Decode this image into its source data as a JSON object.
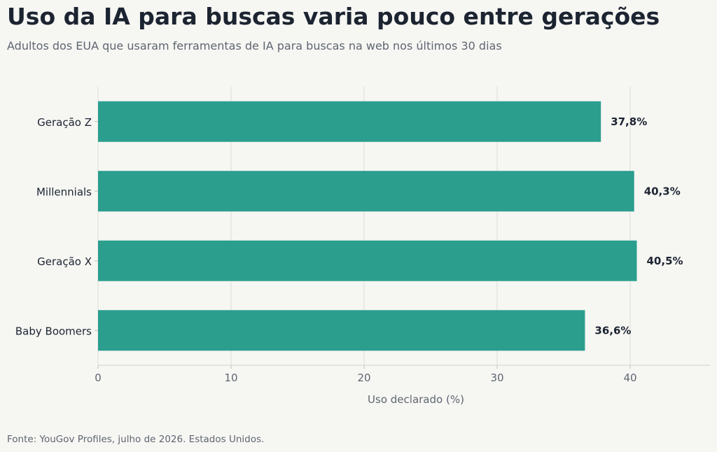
{
  "title": "Uso da IA para buscas varia pouco entre gerações",
  "subtitle": "Adultos dos EUA que usaram ferramentas de IA para buscas na web nos últimos 30 dias",
  "source": "Fonte: YouGov Profiles, julho de 2026. Estados Unidos.",
  "chart_data": {
    "type": "bar",
    "orientation": "horizontal",
    "categories": [
      "Geração Z",
      "Millennials",
      "Geração X",
      "Baby Boomers"
    ],
    "values": [
      37.8,
      40.3,
      40.5,
      36.6
    ],
    "value_labels": [
      "37,8%",
      "40,3%",
      "40,5%",
      "36,6%"
    ],
    "xlabel": "Uso declarado (%)",
    "ylabel": "",
    "xlim": [
      0,
      46
    ],
    "xticks": [
      0,
      10,
      20,
      30,
      40
    ],
    "grid": true,
    "bar_color": "#2b9e8e"
  }
}
